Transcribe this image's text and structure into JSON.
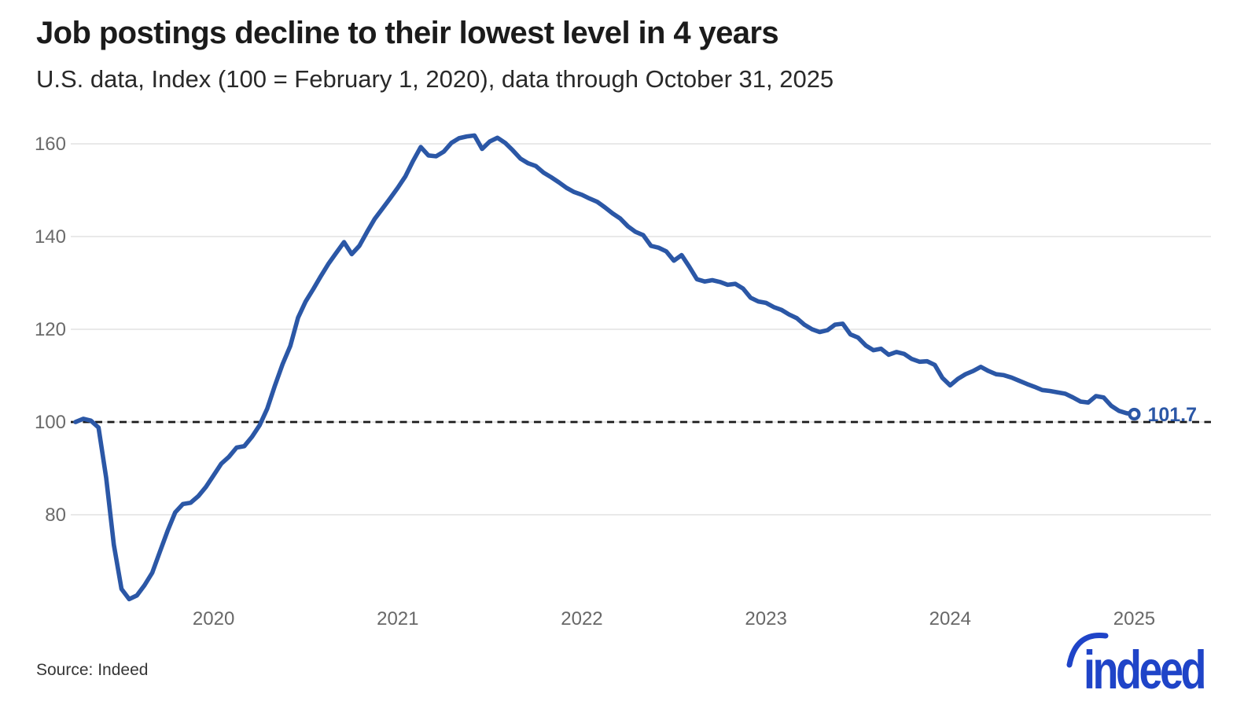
{
  "header": {
    "title": "Job postings decline to their lowest level in 4 years",
    "subtitle": "U.S. data, Index (100 = February 1, 2020), data through October 31, 2025"
  },
  "footer": {
    "source": "Source: Indeed",
    "logo_text": "indeed",
    "logo_color": "#1f44c8"
  },
  "chart_data": {
    "type": "line",
    "title": "Job postings decline to their lowest level in 4 years",
    "subtitle": "U.S. data, Index (100 = February 1, 2020), data through October 31, 2025",
    "x_unit": "date",
    "index_base": "100 = February 1, 2020",
    "data_through": "October 31, 2025",
    "grid": true,
    "legend": "none",
    "line_color": "#2b57a6",
    "grid_color": "#e2e2e2",
    "baseline": {
      "value": 100,
      "style": "dashed",
      "color": "#1a1a1a"
    },
    "end_label": "101.7",
    "end_value": 101.7,
    "y_ticks": [
      160,
      140,
      120,
      100,
      80
    ],
    "ylim": [
      58,
      166
    ],
    "x_ticks": [
      {
        "label": "2020",
        "month_offset": 9
      },
      {
        "label": "2021",
        "month_offset": 21
      },
      {
        "label": "2022",
        "month_offset": 33
      },
      {
        "label": "2023",
        "month_offset": 45
      },
      {
        "label": "2024",
        "month_offset": 57
      },
      {
        "label": "2025",
        "month_offset": 69
      }
    ],
    "series": [
      {
        "name": "U.S. job postings index",
        "start": "2020-02-01",
        "step_months": 0.5,
        "values": [
          100.0,
          100.7,
          100.3,
          98.8,
          88.0,
          73.5,
          64.0,
          61.8,
          62.6,
          64.8,
          67.5,
          72.0,
          76.5,
          80.5,
          82.3,
          82.6,
          84.0,
          86.0,
          88.5,
          91.0,
          92.5,
          94.5,
          94.8,
          96.8,
          99.3,
          102.9,
          107.9,
          112.5,
          116.4,
          122.5,
          126.0,
          128.7,
          131.5,
          134.2,
          136.5,
          138.8,
          136.2,
          138.0,
          141.0,
          143.8,
          146.0,
          148.2,
          150.5,
          153.0,
          156.3,
          159.3,
          157.5,
          157.3,
          158.3,
          160.2,
          161.2,
          161.6,
          161.8,
          158.9,
          160.5,
          161.3,
          160.2,
          158.6,
          156.8,
          155.8,
          155.2,
          153.8,
          152.8,
          151.7,
          150.5,
          149.6,
          149.0,
          148.2,
          147.5,
          146.3,
          145.0,
          143.9,
          142.2,
          141.0,
          140.3,
          138.0,
          137.6,
          136.8,
          134.8,
          136.0,
          133.5,
          130.8,
          130.3,
          130.6,
          130.2,
          129.6,
          129.8,
          128.8,
          126.8,
          126.0,
          125.7,
          124.8,
          124.2,
          123.2,
          122.4,
          121.0,
          120.0,
          119.4,
          119.8,
          121.0,
          121.2,
          118.9,
          118.2,
          116.5,
          115.5,
          115.8,
          114.5,
          115.1,
          114.7,
          113.6,
          113.0,
          113.1,
          112.3,
          109.5,
          107.9,
          109.3,
          110.3,
          111.0,
          111.9,
          111.0,
          110.3,
          110.1,
          109.6,
          108.9,
          108.2,
          107.6,
          106.9,
          106.7,
          106.4,
          106.1,
          105.3,
          104.4,
          104.2,
          105.6,
          105.3,
          103.5,
          102.4,
          101.9,
          101.7
        ]
      }
    ]
  }
}
